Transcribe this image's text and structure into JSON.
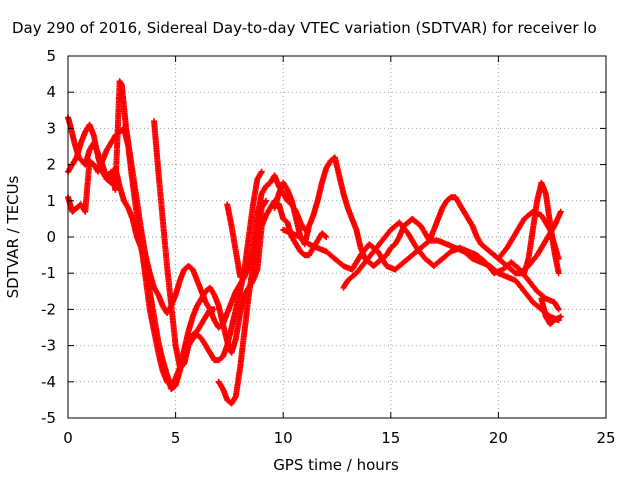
{
  "chart_data": {
    "type": "scatter",
    "title": "Day 290 of 2016, Sidereal Day-to-day VTEC variation (SDTVAR) for receiver lo",
    "xlabel": "GPS time / hours",
    "ylabel": "SDTVAR / TECUs",
    "xlim": [
      0,
      25
    ],
    "ylim": [
      -5,
      5
    ],
    "xticks": [
      "0",
      "5",
      "10",
      "15",
      "20",
      "25"
    ],
    "yticks": [
      "-5",
      "-4",
      "-3",
      "-2",
      "-1",
      "0",
      "1",
      "2",
      "3",
      "4",
      "5"
    ],
    "grid": true,
    "marker": "plus",
    "color": "#ff0000",
    "series": [
      {
        "x": [
          0,
          0.1,
          0.3,
          0.5,
          0.8,
          1.0,
          1.2,
          1.4,
          1.6,
          1.8,
          2.0,
          2.2,
          2.4,
          2.6,
          2.8,
          3.0,
          3.2,
          3.4,
          3.6,
          3.8,
          4.0,
          4.2,
          4.4,
          4.6,
          4.8,
          5.0,
          5.2,
          5.4,
          5.6,
          5.8,
          6.0,
          6.2,
          6.4,
          6.6,
          6.8,
          7.0,
          7.2,
          7.4,
          7.6,
          7.8,
          8.0,
          8.2,
          8.4,
          8.6,
          8.8,
          9.0,
          9.2,
          9.4,
          9.6,
          9.8,
          10.0,
          10.2,
          10.4,
          10.6,
          10.8,
          11.0,
          11.2,
          11.4,
          11.6,
          11.8,
          12.0
        ],
        "y": [
          3.3,
          3.1,
          2.6,
          2.2,
          2.0,
          2.4,
          2.6,
          2.3,
          2.0,
          1.6,
          1.5,
          1.9,
          1.4,
          1.0,
          0.8,
          0.5,
          0.0,
          -0.3,
          -0.9,
          -1.5,
          -2.2,
          -2.9,
          -3.4,
          -3.8,
          -4.2,
          -4.1,
          -3.7,
          -3.1,
          -2.6,
          -2.2,
          -1.9,
          -1.7,
          -1.5,
          -1.4,
          -1.6,
          -1.9,
          -2.4,
          -2.9,
          -3.2,
          -2.8,
          -2.1,
          -1.6,
          -1.4,
          -1.2,
          -0.9,
          0.3,
          0.6,
          0.8,
          1.0,
          0.9,
          0.5,
          0.4,
          0.0,
          -0.2,
          -0.4,
          -0.5,
          -0.5,
          -0.3,
          -0.1,
          0.1,
          0.0
        ]
      },
      {
        "x": [
          0,
          0.2,
          0.4,
          0.6,
          0.8,
          1.0,
          1.2,
          1.4,
          1.6,
          1.8,
          2.0,
          2.2,
          2.4,
          2.5,
          2.6,
          2.7,
          2.8,
          3.0,
          3.2,
          3.4,
          3.6,
          3.8,
          4.0,
          4.2,
          4.4,
          4.6,
          4.8,
          5.0,
          5.2,
          5.4,
          5.6,
          5.8,
          6.0,
          6.2,
          6.4,
          6.6,
          6.8,
          7.0,
          7.2,
          7.4,
          7.6,
          7.8,
          8.0,
          8.2,
          8.4,
          8.6,
          8.8,
          9.0,
          9.2,
          9.4,
          9.6,
          9.8,
          10.0,
          10.2,
          10.4,
          10.6,
          10.8,
          11.0
        ],
        "y": [
          1.8,
          2.0,
          2.2,
          2.6,
          2.9,
          3.1,
          2.8,
          2.2,
          1.8,
          1.6,
          1.8,
          1.3,
          4.3,
          4.2,
          3.6,
          3.0,
          2.6,
          1.8,
          1.0,
          0.2,
          -0.5,
          -1.0,
          -1.4,
          -1.6,
          -1.9,
          -2.1,
          -1.9,
          -1.6,
          -1.2,
          -0.9,
          -0.8,
          -0.9,
          -1.2,
          -1.5,
          -1.8,
          -2.0,
          -2.3,
          -2.5,
          -2.4,
          -2.1,
          -1.8,
          -1.5,
          -1.3,
          -1.1,
          -0.8,
          -0.3,
          0.6,
          1.2,
          1.4,
          1.5,
          1.7,
          1.4,
          1.2,
          1.0,
          0.9,
          0.7,
          0.4,
          0.2
        ]
      },
      {
        "x": [
          0,
          0.2,
          0.4,
          0.6,
          0.8,
          1.0,
          1.2,
          1.4,
          1.6,
          1.8,
          2.0,
          2.2,
          2.4,
          2.6,
          2.8,
          3.0,
          3.2,
          3.4,
          3.6,
          3.8,
          4.0,
          4.2,
          4.4,
          4.6,
          4.8,
          5.0,
          5.2,
          5.4,
          5.6,
          5.8,
          6.0,
          6.2,
          6.4,
          6.6,
          6.8,
          7.0,
          7.2,
          7.4,
          7.6,
          7.8,
          8.0,
          8.2,
          8.4,
          8.6,
          8.8,
          9.0
        ],
        "y": [
          1.1,
          0.7,
          0.8,
          0.9,
          0.7,
          2.1,
          2.0,
          1.8,
          2.1,
          2.4,
          2.6,
          2.8,
          2.9,
          3.0,
          2.5,
          1.5,
          0.6,
          -0.2,
          -1.1,
          -2.0,
          -2.6,
          -3.2,
          -3.7,
          -4.0,
          -4.1,
          -3.9,
          -3.6,
          -3.3,
          -3.0,
          -2.8,
          -2.7,
          -2.8,
          -3.0,
          -3.2,
          -3.4,
          -3.4,
          -3.3,
          -3.0,
          -2.5,
          -2.0,
          -1.5,
          -0.9,
          0.0,
          0.9,
          1.6,
          1.8
        ]
      },
      {
        "x": [
          4.0,
          4.1,
          4.2,
          4.4,
          4.6,
          4.8,
          5.0,
          5.2,
          5.4,
          5.6,
          5.8,
          6.0,
          6.2,
          6.4,
          6.6,
          6.8
        ],
        "y": [
          3.2,
          2.5,
          1.8,
          0.5,
          -0.8,
          -1.9,
          -3.0,
          -3.6,
          -3.5,
          -3.0,
          -2.7,
          -2.6,
          -2.4,
          -2.2,
          -2.0,
          -2.0
        ]
      },
      {
        "x": [
          7.0,
          7.2,
          7.4,
          7.6,
          7.8,
          8.0,
          8.2,
          8.4,
          8.6,
          8.8,
          9.0,
          9.2
        ],
        "y": [
          -4.0,
          -4.2,
          -4.5,
          -4.6,
          -4.4,
          -3.6,
          -2.6,
          -1.6,
          -0.8,
          0.0,
          0.8,
          1.0
        ]
      },
      {
        "x": [
          7.4,
          7.6,
          7.8,
          8.0
        ],
        "y": [
          0.9,
          0.3,
          -0.4,
          -1.1
        ]
      },
      {
        "x": [
          9.6,
          9.8,
          10.0,
          10.2,
          10.4,
          10.6,
          10.8,
          11.0,
          11.2,
          11.4,
          11.6,
          11.8,
          12.0,
          12.2,
          12.4,
          12.6,
          12.8,
          13.0,
          13.2,
          13.4,
          13.6,
          13.8,
          14.0,
          14.2,
          14.4,
          14.6,
          14.8,
          15.0,
          15.2,
          15.4,
          15.6,
          15.8,
          16.0,
          16.2,
          16.4,
          16.6,
          16.8,
          17.0,
          17.2,
          17.4,
          17.6,
          17.8,
          18.0,
          18.2,
          18.4,
          18.6,
          18.8,
          19.0,
          19.2,
          19.4,
          19.6,
          19.8,
          20.0,
          20.2,
          20.4,
          20.6,
          20.8,
          21.0,
          21.2,
          21.4,
          21.6,
          21.8,
          22.0,
          22.2,
          22.4,
          22.6,
          22.8
        ],
        "y": [
          0.8,
          1.2,
          1.5,
          1.3,
          1.0,
          0.5,
          0.0,
          -0.2,
          0.3,
          0.6,
          1.0,
          1.5,
          1.9,
          2.1,
          2.2,
          1.7,
          1.2,
          0.8,
          0.5,
          0.2,
          -0.3,
          -0.6,
          -0.7,
          -0.8,
          -0.7,
          -0.6,
          -0.5,
          -0.3,
          -0.2,
          0.0,
          0.3,
          0.4,
          0.5,
          0.4,
          0.3,
          0.1,
          -0.1,
          0.2,
          0.5,
          0.8,
          1.0,
          1.1,
          1.1,
          0.9,
          0.7,
          0.5,
          0.3,
          0.0,
          -0.2,
          -0.3,
          -0.4,
          -0.5,
          -0.6,
          -0.7,
          -0.8,
          -0.9,
          -1.0,
          -1.0,
          -1.0,
          -0.6,
          0.2,
          1.0,
          1.5,
          1.2,
          0.4,
          -0.4,
          -1.0
        ]
      },
      {
        "x": [
          10.0,
          10.4,
          10.8,
          11.2,
          11.6,
          12.0,
          12.4,
          12.8,
          13.2,
          13.6,
          14.0,
          14.4,
          14.8,
          15.2,
          15.6,
          16.0,
          16.4,
          16.8,
          17.2,
          17.6,
          18.0,
          18.4,
          18.8,
          19.2,
          19.6,
          20.0,
          20.4,
          20.8,
          21.2,
          21.6,
          22.0,
          22.4,
          22.8
        ],
        "y": [
          0.2,
          0.1,
          0.0,
          -0.2,
          -0.3,
          -0.4,
          -0.6,
          -0.8,
          -0.9,
          -0.5,
          -0.2,
          -0.4,
          -0.8,
          -0.9,
          -0.7,
          -0.5,
          -0.3,
          -0.1,
          -0.1,
          -0.2,
          -0.3,
          -0.4,
          -0.6,
          -0.7,
          -0.8,
          -1.0,
          -1.1,
          -1.2,
          -1.5,
          -1.8,
          -2.0,
          -2.2,
          -2.3
        ]
      },
      {
        "x": [
          12.8,
          13.0,
          13.4,
          13.8,
          14.2,
          14.6,
          15.0,
          15.4,
          15.8,
          16.2,
          16.6,
          17.0,
          17.4,
          17.8,
          18.2,
          18.6,
          19.0,
          19.4,
          19.8,
          20.2,
          20.6,
          21.0,
          21.4,
          21.8,
          22.2,
          22.6,
          22.8
        ],
        "y": [
          -1.4,
          -1.2,
          -1.0,
          -0.7,
          -0.4,
          -0.1,
          0.2,
          0.4,
          0.1,
          -0.3,
          -0.6,
          -0.8,
          -0.6,
          -0.4,
          -0.3,
          -0.4,
          -0.5,
          -0.7,
          -1.0,
          -0.9,
          -0.7,
          -0.9,
          -1.2,
          -1.5,
          -1.7,
          -1.8,
          -2.0
        ]
      },
      {
        "x": [
          20.0,
          20.4,
          20.8,
          21.2,
          21.6,
          22.0,
          22.4,
          22.8
        ],
        "y": [
          -0.6,
          -0.3,
          0.1,
          0.5,
          0.7,
          0.6,
          0.2,
          -0.6
        ]
      },
      {
        "x": [
          21.0,
          21.4,
          21.8,
          22.2,
          22.6,
          22.9
        ],
        "y": [
          -1.0,
          -0.8,
          -0.5,
          -0.1,
          0.3,
          0.7
        ]
      },
      {
        "x": [
          22.0,
          22.2,
          22.4,
          22.6,
          22.9
        ],
        "y": [
          -1.7,
          -2.2,
          -2.4,
          -2.3,
          -2.2
        ]
      }
    ]
  }
}
